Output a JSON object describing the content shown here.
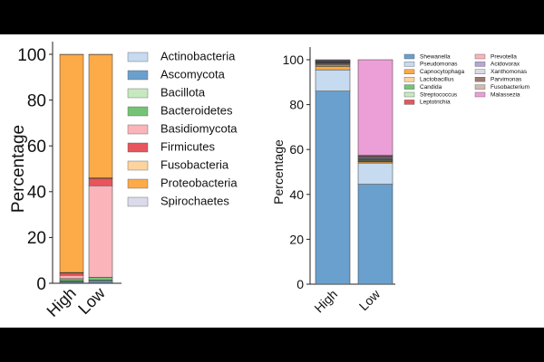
{
  "chart_data": [
    {
      "type": "bar",
      "stacked": true,
      "ylabel": "Percentage",
      "categories": [
        "High",
        "Low"
      ],
      "ylim": [
        0,
        100
      ],
      "yticks": [
        0,
        20,
        40,
        60,
        80,
        100
      ],
      "legend": "right",
      "series": [
        {
          "name": "Actinobacteria",
          "color": "#c6dbef",
          "values": [
            0.3,
            0.3
          ]
        },
        {
          "name": "Ascomycota",
          "color": "#6aa0cd",
          "values": [
            0.5,
            0.8
          ]
        },
        {
          "name": "Bacillota",
          "color": "#c7e9c0",
          "values": [
            0.2,
            0.3
          ]
        },
        {
          "name": "Bacteroidetes",
          "color": "#74c476",
          "values": [
            1.0,
            1.2
          ]
        },
        {
          "name": "Basidiomycota",
          "color": "#fbb4b9",
          "values": [
            1.5,
            40.0
          ]
        },
        {
          "name": "Firmicutes",
          "color": "#e8555c",
          "values": [
            1.0,
            3.2
          ]
        },
        {
          "name": "Fusobacteria",
          "color": "#fdd49e",
          "values": [
            0.2,
            0.2
          ]
        },
        {
          "name": "Proteobacteria",
          "color": "#fdaa48",
          "values": [
            95.2,
            53.9
          ]
        },
        {
          "name": "Spirochaetes",
          "color": "#dadaeb",
          "values": [
            0.1,
            0.1
          ]
        }
      ]
    },
    {
      "type": "bar",
      "stacked": true,
      "ylabel": "Percentage",
      "categories": [
        "High",
        "Low"
      ],
      "ylim": [
        0,
        100
      ],
      "yticks": [
        0,
        20,
        40,
        60,
        80,
        100
      ],
      "legend": "right",
      "series": [
        {
          "name": "Shewanella",
          "color": "#6aa0cd",
          "values": [
            86.0,
            44.5
          ]
        },
        {
          "name": "Pseudomonas",
          "color": "#c6dbef",
          "values": [
            9.5,
            9.5
          ]
        },
        {
          "name": "Capnocytophaga",
          "color": "#fdaa48",
          "values": [
            1.5,
            0.5
          ]
        },
        {
          "name": "Lactobacillus",
          "color": "#fdd49e",
          "values": [
            0.5,
            0.3
          ]
        },
        {
          "name": "Candida",
          "color": "#74c476",
          "values": [
            0.3,
            0.3
          ]
        },
        {
          "name": "Streptococcus",
          "color": "#c7e9c0",
          "values": [
            0.3,
            0.3
          ]
        },
        {
          "name": "Leptotrichia",
          "color": "#e8555c",
          "values": [
            0.4,
            0.4
          ]
        },
        {
          "name": "Prevotella",
          "color": "#fbb4b9",
          "values": [
            0.2,
            0.2
          ]
        },
        {
          "name": "Acidovorax",
          "color": "#b4a7d6",
          "values": [
            0.3,
            0.5
          ]
        },
        {
          "name": "Xanthomonas",
          "color": "#dadaeb",
          "values": [
            0.2,
            0.2
          ]
        },
        {
          "name": "Parvimonas",
          "color": "#9c7b6f",
          "values": [
            0.3,
            0.5
          ]
        },
        {
          "name": "Fusobacterium",
          "color": "#d4b9ae",
          "values": [
            0.2,
            0.2
          ]
        },
        {
          "name": "Malassezia",
          "color": "#ec9fd7",
          "values": [
            0.3,
            42.6
          ]
        }
      ]
    }
  ]
}
